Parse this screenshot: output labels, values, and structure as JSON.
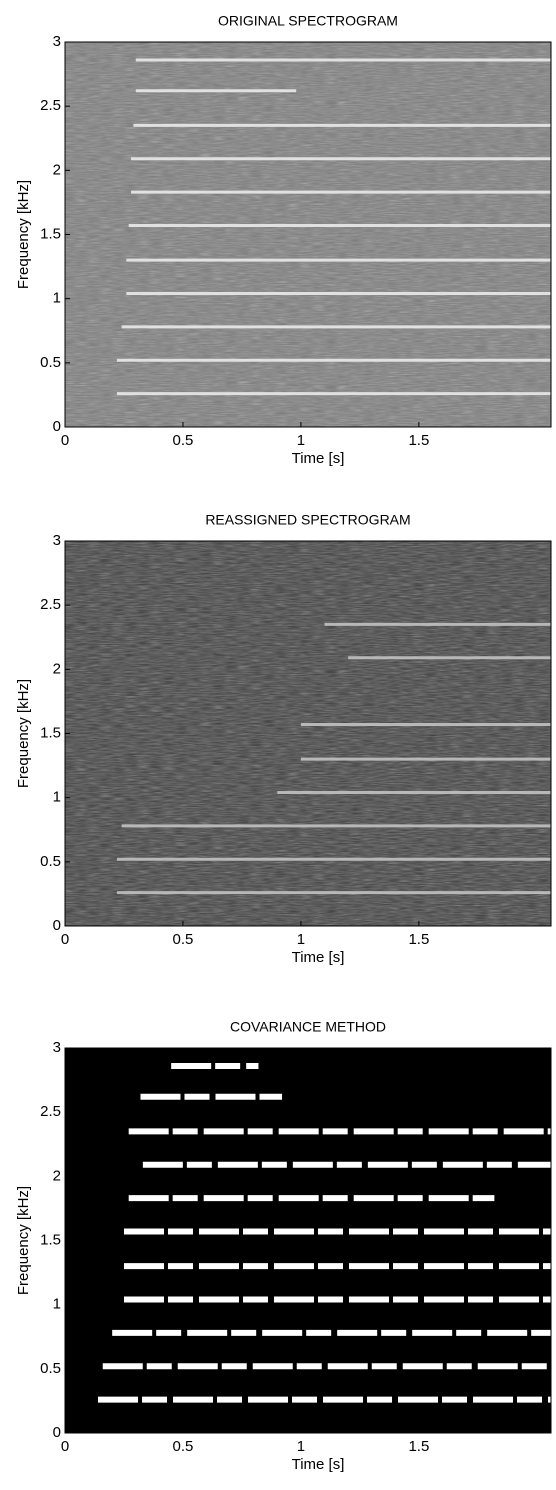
{
  "chart_data": [
    {
      "type": "spectrogram",
      "title": "ORIGINAL SPECTROGRAM",
      "x_label": "Time [s]",
      "y_label": "Frequency [kHz]",
      "xlim": [
        0,
        2.06
      ],
      "ylim": [
        0,
        3
      ],
      "xticks": [
        0,
        0.5,
        1,
        1.5
      ],
      "yticks": [
        0,
        0.5,
        1,
        1.5,
        2,
        2.5,
        3
      ],
      "background": "#7a7a7a",
      "line_color": "#f0f0f0",
      "harmonics": [
        {
          "freq": 0.26,
          "start": 0.22,
          "end": 2.06
        },
        {
          "freq": 0.52,
          "start": 0.22,
          "end": 2.06
        },
        {
          "freq": 0.78,
          "start": 0.24,
          "end": 2.06
        },
        {
          "freq": 1.04,
          "start": 0.26,
          "end": 2.06
        },
        {
          "freq": 1.3,
          "start": 0.26,
          "end": 2.06
        },
        {
          "freq": 1.57,
          "start": 0.27,
          "end": 2.06
        },
        {
          "freq": 1.83,
          "start": 0.28,
          "end": 2.06
        },
        {
          "freq": 2.09,
          "start": 0.28,
          "end": 2.06
        },
        {
          "freq": 2.35,
          "start": 0.29,
          "end": 2.06
        },
        {
          "freq": 2.62,
          "start": 0.3,
          "end": 0.98
        },
        {
          "freq": 2.86,
          "start": 0.3,
          "end": 2.06
        }
      ]
    },
    {
      "type": "spectrogram",
      "title": "REASSIGNED SPECTROGRAM",
      "x_label": "Time [s]",
      "y_label": "Frequency [kHz]",
      "xlim": [
        0,
        2.06
      ],
      "ylim": [
        0,
        3
      ],
      "xticks": [
        0,
        0.5,
        1,
        1.5
      ],
      "yticks": [
        0,
        0.5,
        1,
        1.5,
        2,
        2.5,
        3
      ],
      "background": "#3a3a3a",
      "line_color": "#c8c8c8",
      "harmonics": [
        {
          "freq": 0.26,
          "start": 0.22,
          "end": 2.06
        },
        {
          "freq": 0.52,
          "start": 0.22,
          "end": 2.06
        },
        {
          "freq": 0.78,
          "start": 0.24,
          "end": 2.06
        },
        {
          "freq": 1.04,
          "start": 0.9,
          "end": 2.06
        },
        {
          "freq": 1.3,
          "start": 1.0,
          "end": 2.06
        },
        {
          "freq": 1.57,
          "start": 1.0,
          "end": 2.06
        },
        {
          "freq": 2.09,
          "start": 1.2,
          "end": 2.06
        },
        {
          "freq": 2.35,
          "start": 1.1,
          "end": 2.06
        }
      ]
    },
    {
      "type": "spectrogram",
      "title": "COVARIANCE METHOD",
      "x_label": "Time [s]",
      "y_label": "Frequency [kHz]",
      "xlim": [
        0,
        2.06
      ],
      "ylim": [
        0,
        3
      ],
      "xticks": [
        0,
        0.5,
        1,
        1.5
      ],
      "yticks": [
        0,
        0.5,
        1,
        1.5,
        2,
        2.5,
        3
      ],
      "background": "#000000",
      "line_color": "#ffffff",
      "harmonics": [
        {
          "freq": 0.26,
          "start": 0.14,
          "end": 2.06
        },
        {
          "freq": 0.52,
          "start": 0.16,
          "end": 2.06
        },
        {
          "freq": 0.78,
          "start": 0.2,
          "end": 2.06
        },
        {
          "freq": 1.04,
          "start": 0.25,
          "end": 2.06
        },
        {
          "freq": 1.3,
          "start": 0.25,
          "end": 2.06
        },
        {
          "freq": 1.57,
          "start": 0.25,
          "end": 2.06
        },
        {
          "freq": 1.83,
          "start": 0.27,
          "end": 1.82
        },
        {
          "freq": 2.09,
          "start": 0.33,
          "end": 2.06
        },
        {
          "freq": 2.35,
          "start": 0.27,
          "end": 2.06
        },
        {
          "freq": 2.62,
          "start": 0.32,
          "end": 0.92
        },
        {
          "freq": 2.86,
          "start": 0.45,
          "end": 0.82
        }
      ]
    }
  ]
}
